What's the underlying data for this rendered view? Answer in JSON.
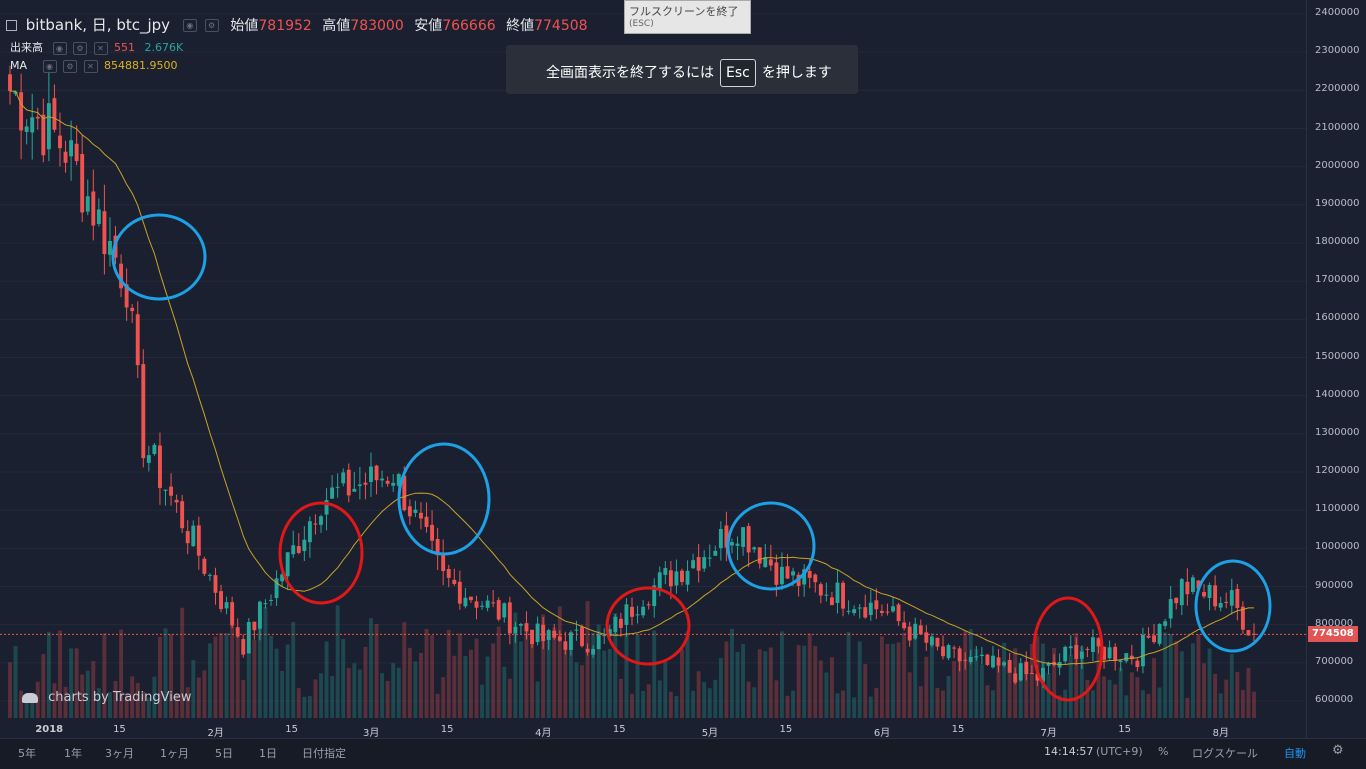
{
  "header": {
    "symbol": "bitbank, 日, btc_jpy",
    "open_label": "始値",
    "open": "781952",
    "high_label": "高値",
    "high": "783000",
    "low_label": "安値",
    "low": "766666",
    "close_label": "終値",
    "close": "774508",
    "volume_label": "出来高",
    "volume_value": "551",
    "volume_ma": "2.676K",
    "ma_label": "MA",
    "ma_value": "854881.9500"
  },
  "fullscreen": {
    "tooltip_line1": "フルスクリーンを終了",
    "tooltip_line2": "(ESC)",
    "banner_before": "全画面表示を終了するには",
    "banner_key": "Esc",
    "banner_after": "を押します"
  },
  "watermark": "charts by TradingView",
  "price_axis": {
    "ticks": [
      "2400000",
      "2300000",
      "2200000",
      "2100000",
      "2000000",
      "1900000",
      "1800000",
      "1700000",
      "1600000",
      "1500000",
      "1400000",
      "1300000",
      "1200000",
      "1100000",
      "1000000",
      "900000",
      "800000",
      "700000",
      "600000"
    ],
    "last_price": "774508"
  },
  "x_axis": {
    "labels": [
      "2018",
      "15",
      "2月",
      "15",
      "3月",
      "15",
      "4月",
      "15",
      "5月",
      "15",
      "6月",
      "15",
      "7月",
      "15",
      "8月"
    ]
  },
  "bottom_bar": {
    "timeframes": [
      "5年",
      "1年",
      "3ヶ月",
      "1ヶ月",
      "5日",
      "1日",
      "日付指定"
    ],
    "time": "14:14:57",
    "timezone": "(UTC+9)",
    "percent": "%",
    "log_scale": "ログスケール",
    "auto": "自動"
  },
  "colors": {
    "up": "#26a69a",
    "down": "#ef5350",
    "ma": "#c9a227",
    "background": "#1b2030",
    "highlight_blue": "#1da1e6",
    "highlight_red": "#e01818"
  },
  "chart_data": {
    "type": "candlestick",
    "interval": "daily",
    "start_date": "2017-12-26",
    "end_date": "2018-08-07",
    "y_range": [
      550000,
      2400000
    ],
    "price_anchor_points": [
      [
        "2017-12-26",
        2200000
      ],
      [
        "2018-01-05",
        2050000
      ],
      [
        "2018-01-16",
        1700000
      ],
      [
        "2018-01-19",
        1280000
      ],
      [
        "2018-02-06",
        750000
      ],
      [
        "2018-02-20",
        1130000
      ],
      [
        "2018-03-05",
        1200000
      ],
      [
        "2018-03-14",
        920000
      ],
      [
        "2018-04-01",
        760000
      ],
      [
        "2018-04-12",
        760000
      ],
      [
        "2018-04-19",
        880000
      ],
      [
        "2018-05-01",
        1000000
      ],
      [
        "2018-05-06",
        1060000
      ],
      [
        "2018-05-14",
        930000
      ],
      [
        "2018-06-01",
        840000
      ],
      [
        "2018-06-12",
        720000
      ],
      [
        "2018-06-29",
        660000
      ],
      [
        "2018-07-06",
        740000
      ],
      [
        "2018-07-17",
        720000
      ],
      [
        "2018-07-25",
        900000
      ],
      [
        "2018-08-03",
        860000
      ],
      [
        "2018-08-07",
        774508
      ]
    ],
    "last_value": 774508,
    "indicators": [
      "Volume",
      "MA"
    ],
    "series": [
      {
        "name": "btc_jpy"
      },
      {
        "name": "出来高"
      },
      {
        "name": "MA"
      }
    ]
  }
}
